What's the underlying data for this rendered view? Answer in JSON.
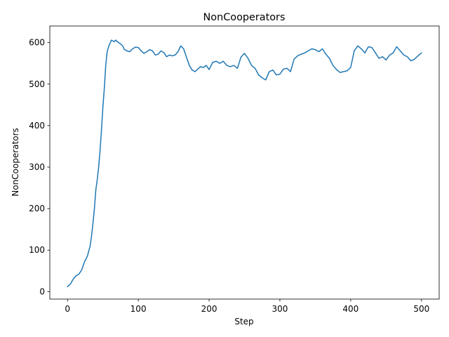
{
  "chart_data": {
    "type": "line",
    "title": "NonCooperators",
    "xlabel": "Step",
    "ylabel": "NonCooperators",
    "xlim": [
      -25,
      525
    ],
    "ylim": [
      -18,
      640
    ],
    "x_ticks": [
      0,
      100,
      200,
      300,
      400,
      500
    ],
    "x_tick_labels": [
      "0",
      "100",
      "200",
      "300",
      "400",
      "500"
    ],
    "y_ticks": [
      0,
      100,
      200,
      300,
      400,
      500,
      600
    ],
    "y_tick_labels": [
      "0",
      "100",
      "200",
      "300",
      "400",
      "500",
      "600"
    ],
    "grid": false,
    "legend": "none",
    "line_color": "#1f77b4",
    "series": [
      {
        "x": [
          0,
          4,
          8,
          12,
          16,
          20,
          24,
          28,
          32,
          34,
          36,
          38,
          40,
          42,
          44,
          46,
          48,
          50,
          52,
          54,
          56,
          58,
          60,
          62,
          64,
          66,
          68,
          70,
          72,
          74,
          76,
          78,
          80,
          84,
          88,
          92,
          96,
          100,
          104,
          108,
          112,
          116,
          120,
          124,
          128,
          132,
          136,
          140,
          144,
          148,
          152,
          156,
          160,
          164,
          168,
          172,
          176,
          180,
          184,
          188,
          192,
          196,
          200,
          205,
          210,
          215,
          220,
          225,
          230,
          235,
          240,
          245,
          250,
          255,
          260,
          265,
          270,
          275,
          280,
          285,
          290,
          295,
          300,
          305,
          310,
          315,
          320,
          325,
          330,
          335,
          340,
          345,
          350,
          355,
          360,
          365,
          370,
          375,
          380,
          385,
          390,
          395,
          400,
          405,
          410,
          415,
          420,
          425,
          430,
          435,
          440,
          445,
          450,
          455,
          460,
          465,
          470,
          475,
          480,
          485,
          490,
          495,
          500
        ],
        "y": [
          12,
          18,
          30,
          38,
          42,
          52,
          72,
          85,
          110,
          135,
          165,
          200,
          245,
          270,
          300,
          340,
          390,
          445,
          490,
          545,
          578,
          590,
          598,
          606,
          604,
          602,
          606,
          603,
          600,
          598,
          595,
          592,
          584,
          580,
          578,
          585,
          589,
          588,
          580,
          574,
          578,
          583,
          580,
          570,
          572,
          580,
          576,
          566,
          570,
          568,
          570,
          578,
          592,
          585,
          565,
          545,
          534,
          530,
          536,
          542,
          540,
          545,
          535,
          552,
          555,
          550,
          555,
          545,
          542,
          545,
          538,
          565,
          574,
          562,
          545,
          538,
          522,
          515,
          510,
          530,
          534,
          522,
          524,
          536,
          538,
          530,
          560,
          568,
          572,
          575,
          580,
          585,
          583,
          578,
          585,
          572,
          562,
          545,
          535,
          528,
          530,
          532,
          540,
          580,
          592,
          585,
          575,
          590,
          588,
          575,
          562,
          566,
          558,
          570,
          575,
          590,
          580,
          570,
          566,
          556,
          560,
          568,
          575
        ]
      }
    ]
  }
}
